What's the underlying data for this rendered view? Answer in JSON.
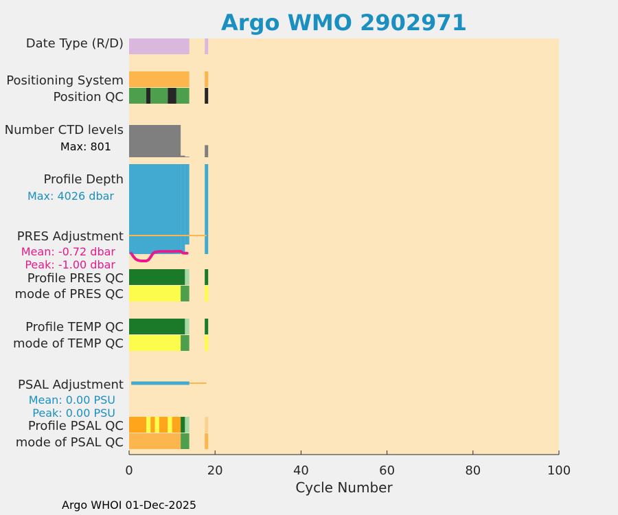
{
  "chart_data": {
    "type": "bar",
    "title": "Argo WMO 2902971",
    "xlabel": "Cycle Number",
    "xlim": [
      0,
      100
    ],
    "xticks": [
      "0",
      "20",
      "40",
      "60",
      "80",
      "100"
    ],
    "footer": "Argo WHOI 01-Dec-2025",
    "colors": {
      "background": "#fde6bc",
      "figure": "#f0f0f0",
      "title": "#1a8fc0",
      "date_type": "#dab8dd",
      "orange": "#fdb64e",
      "dark_orange": "#ffa51c",
      "qc_green": "#4d9e4d",
      "qc_dark_green": "#1a7a2a",
      "qc_light_green": "#a6d8a6",
      "qc_black": "#262626",
      "qc_yellow": "#fcfc4d",
      "ctd_gray": "#7f7f7f",
      "depth_blue": "#42aad1",
      "pres_adj": "#e8198a",
      "info_blue": "#1a8fc0"
    },
    "row_labels": [
      {
        "key": "date_type",
        "text": "Date Type (R/D)"
      },
      {
        "key": "positioning_system",
        "text": "Positioning System"
      },
      {
        "key": "position_qc",
        "text": "Position QC"
      },
      {
        "key": "number_ctd_levels",
        "text": "Number CTD levels"
      },
      {
        "key": "profile_depth",
        "text": "Profile Depth"
      },
      {
        "key": "pres_adjustment",
        "text": "PRES Adjustment"
      },
      {
        "key": "profile_pres_qc",
        "text": "Profile PRES QC"
      },
      {
        "key": "mode_pres_qc",
        "text": "mode of PRES QC"
      },
      {
        "key": "profile_temp_qc",
        "text": "Profile TEMP QC"
      },
      {
        "key": "mode_temp_qc",
        "text": "mode of TEMP QC"
      },
      {
        "key": "psal_adjustment",
        "text": "PSAL Adjustment"
      },
      {
        "key": "profile_psal_qc",
        "text": "Profile PSAL QC"
      },
      {
        "key": "mode_psal_qc",
        "text": "mode of PSAL QC"
      }
    ],
    "annotations": {
      "ctd_max": "Max: 801",
      "depth_max": "Max: 4026 dbar",
      "pres_mean": "Mean: -0.72 dbar",
      "pres_peak": "Peak: -1.00 dbar",
      "psal_mean": "Mean: 0.00 PSU",
      "psal_peak": "Peak: 0.00 PSU"
    },
    "series": {
      "date_type": [
        {
          "x0": 0,
          "x1": 14,
          "color": "date_type"
        },
        {
          "x0": 17.6,
          "x1": 18.4,
          "color": "date_type"
        }
      ],
      "positioning_system": [
        {
          "x0": 0,
          "x1": 14,
          "color": "orange"
        },
        {
          "x0": 17.6,
          "x1": 18.4,
          "color": "orange"
        }
      ],
      "position_qc": [
        {
          "x0": 0,
          "x1": 4,
          "color": "qc_green"
        },
        {
          "x0": 4,
          "x1": 5,
          "color": "qc_black"
        },
        {
          "x0": 5,
          "x1": 9,
          "color": "qc_green"
        },
        {
          "x0": 9,
          "x1": 11,
          "color": "qc_black"
        },
        {
          "x0": 11,
          "x1": 14,
          "color": "qc_green"
        },
        {
          "x0": 17.6,
          "x1": 18.4,
          "color": "qc_black"
        }
      ],
      "number_ctd_levels": [
        {
          "x0": 0,
          "x1": 12,
          "value": 801
        },
        {
          "x0": 12,
          "x1": 13,
          "value": 40
        },
        {
          "x0": 13,
          "x1": 14,
          "value": 15
        },
        {
          "x0": 17.6,
          "x1": 18.4,
          "value": 300
        }
      ],
      "profile_depth": [
        {
          "x0": 0,
          "x1": 12,
          "value": 4026
        },
        {
          "x0": 12,
          "x1": 13,
          "value": 3980
        },
        {
          "x0": 13,
          "x1": 14,
          "value": 3600
        },
        {
          "x0": 17.6,
          "x1": 18.4,
          "value": 4026
        }
      ],
      "pres_adjustment_line": {
        "x0": 0,
        "x1": 18,
        "value": 0
      },
      "pres_adjustment_curve": [
        [
          0.5,
          -0.2
        ],
        [
          1,
          -0.55
        ],
        [
          1.5,
          -0.8
        ],
        [
          2,
          -0.92
        ],
        [
          2.5,
          -0.98
        ],
        [
          3,
          -1.0
        ],
        [
          3.5,
          -1.0
        ],
        [
          4,
          -1.0
        ],
        [
          4.5,
          -0.9
        ],
        [
          5,
          -0.6
        ],
        [
          5.5,
          -0.25
        ],
        [
          6,
          -0.08
        ],
        [
          7,
          -0.02
        ],
        [
          8,
          -0.02
        ],
        [
          9,
          -0.02
        ],
        [
          10,
          -0.02
        ],
        [
          11,
          0.0
        ],
        [
          12,
          0.0
        ],
        [
          12.5,
          -0.18
        ],
        [
          13,
          -0.2
        ],
        [
          13.5,
          -0.2
        ]
      ],
      "profile_pres_qc": [
        {
          "x0": 0,
          "x1": 13,
          "color": "qc_dark_green"
        },
        {
          "x0": 13,
          "x1": 14,
          "color": "qc_light_green"
        },
        {
          "x0": 17.6,
          "x1": 18.4,
          "color": "qc_dark_green"
        }
      ],
      "mode_pres_qc": [
        {
          "x0": 0,
          "x1": 12,
          "color": "qc_yellow"
        },
        {
          "x0": 12,
          "x1": 14,
          "color": "qc_green"
        },
        {
          "x0": 17.6,
          "x1": 18.4,
          "color": "qc_yellow"
        }
      ],
      "profile_temp_qc": [
        {
          "x0": 0,
          "x1": 13,
          "color": "qc_dark_green"
        },
        {
          "x0": 13,
          "x1": 14,
          "color": "qc_light_green"
        },
        {
          "x0": 17.6,
          "x1": 18.4,
          "color": "qc_dark_green"
        }
      ],
      "mode_temp_qc": [
        {
          "x0": 0,
          "x1": 12,
          "color": "qc_yellow"
        },
        {
          "x0": 12,
          "x1": 14,
          "color": "qc_green"
        },
        {
          "x0": 17.6,
          "x1": 18.4,
          "color": "qc_yellow"
        }
      ],
      "psal_adjustment_line": {
        "x0": 0.5,
        "x1": 18,
        "value": 0
      },
      "psal_adjustment_bar": {
        "x0": 0.5,
        "x1": 14,
        "value": 0
      },
      "profile_psal_qc": [
        {
          "x0": 0,
          "x1": 4,
          "color": "dark_orange"
        },
        {
          "x0": 4,
          "x1": 5,
          "color": "qc_yellow"
        },
        {
          "x0": 5,
          "x1": 6,
          "color": "dark_orange"
        },
        {
          "x0": 6,
          "x1": 7,
          "color": "qc_yellow"
        },
        {
          "x0": 7,
          "x1": 9,
          "color": "dark_orange"
        },
        {
          "x0": 9,
          "x1": 10,
          "color": "qc_yellow"
        },
        {
          "x0": 10,
          "x1": 12,
          "color": "dark_orange"
        },
        {
          "x0": 12,
          "x1": 13,
          "color": "qc_dark_green"
        },
        {
          "x0": 13,
          "x1": 14,
          "color": "qc_light_green"
        },
        {
          "x0": 17.6,
          "x1": 18.4,
          "color": "orange_light"
        }
      ],
      "mode_psal_qc": [
        {
          "x0": 0,
          "x1": 12,
          "color": "orange"
        },
        {
          "x0": 12,
          "x1": 14,
          "color": "qc_green"
        },
        {
          "x0": 17.6,
          "x1": 18.4,
          "color": "orange"
        }
      ]
    }
  }
}
